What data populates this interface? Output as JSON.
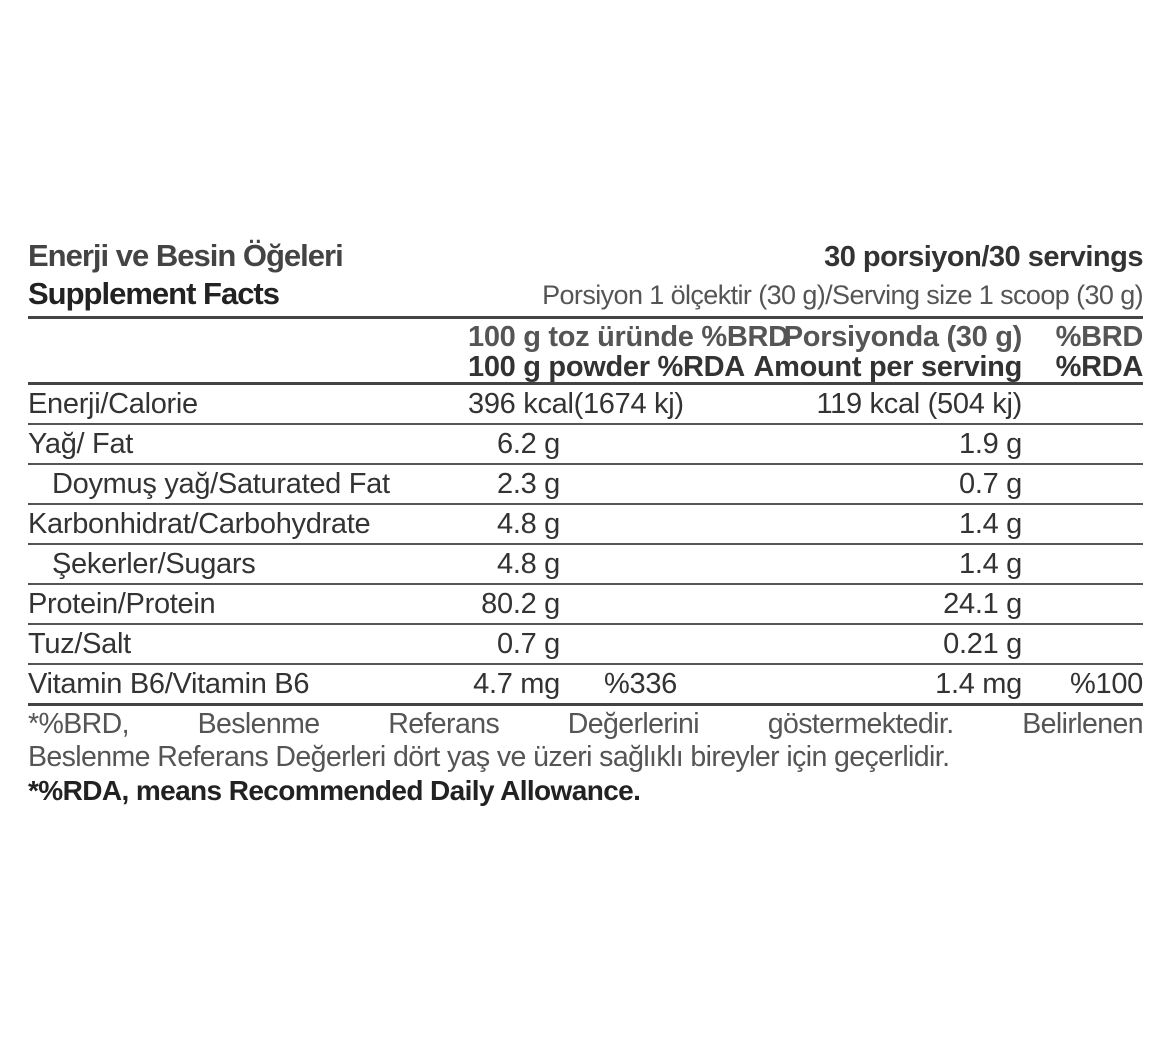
{
  "header": {
    "title_tr": "Enerji ve Besin Öğeleri",
    "title_en": "Supplement Facts",
    "servings": "30 porsiyon/30 servings",
    "serving_size": "Porsiyon 1 ölçektir (30 g)/Serving size 1 scoop (30 g)"
  },
  "columns": {
    "per100_tr": "100 g toz üründe",
    "per100_en": "100 g powder",
    "brd1": "%BRD",
    "rda1": "%RDA",
    "serving_tr": "Porsiyonda (30 g)",
    "serving_en": "Amount per serving",
    "brd2": "%BRD",
    "rda2": "%RDA"
  },
  "rows": [
    {
      "label": "Enerji/Calorie",
      "per100": "396 kcal(1674 kj)",
      "rda100": "",
      "serving": "119 kcal (504 kj)",
      "rdaServing": ""
    },
    {
      "label": "Yağ/ Fat",
      "per100": "6.2 g",
      "rda100": "",
      "serving": "1.9 g",
      "rdaServing": ""
    },
    {
      "label": "Doymuş yağ/Saturated Fat",
      "per100": "2.3 g",
      "rda100": "",
      "serving": "0.7 g",
      "rdaServing": ""
    },
    {
      "label": "Karbonhidrat/Carbohydrate",
      "per100": "4.8 g",
      "rda100": "",
      "serving": "1.4 g",
      "rdaServing": ""
    },
    {
      "label": "Şekerler/Sugars",
      "per100": "4.8 g",
      "rda100": "",
      "serving": "1.4 g",
      "rdaServing": ""
    },
    {
      "label": "Protein/Protein",
      "per100": "80.2 g",
      "rda100": "",
      "serving": "24.1 g",
      "rdaServing": ""
    },
    {
      "label": "Tuz/Salt",
      "per100": "0.7 g",
      "rda100": "",
      "serving": "0.21 g",
      "rdaServing": ""
    },
    {
      "label": "Vitamin B6/Vitamin B6",
      "per100": "4.7 mg",
      "rda100": "%336",
      "serving": "1.4 mg",
      "rdaServing": "%100"
    }
  ],
  "footnote": {
    "line1": "*%BRD, Beslenme Referans Değerlerini göstermektedir. Belirlenen",
    "line2": "Beslenme Referans Değerleri dört yaş ve üzeri sağlıklı bireyler için geçerlidir.",
    "rda": "*%RDA, means Recommended Daily Allowance."
  }
}
